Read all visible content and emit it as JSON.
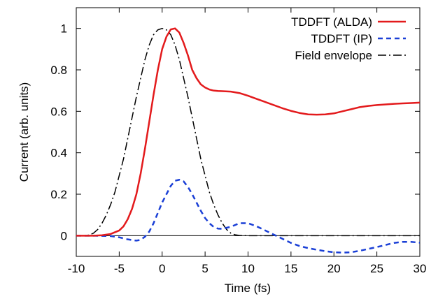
{
  "chart_data": {
    "type": "line",
    "xlabel": "Time (fs)",
    "ylabel": "Current (arb. units)",
    "xlim": [
      -10,
      30
    ],
    "ylim": [
      -0.1,
      1.1
    ],
    "x_ticks": [
      -10,
      -5,
      0,
      5,
      10,
      15,
      20,
      25,
      30
    ],
    "y_ticks": [
      0,
      0.2,
      0.4,
      0.6,
      0.8,
      1
    ],
    "x_tick_labels": [
      "-10",
      "-5",
      "0",
      "5",
      "10",
      "15",
      "20",
      "25",
      "30"
    ],
    "y_tick_labels": [
      "0",
      "0.2",
      "0.4",
      "0.6",
      "0.8",
      "1"
    ],
    "grid": false,
    "zero_line": true,
    "legend_position": "top-right",
    "series": [
      {
        "name": "TDDFT (ALDA)",
        "color": "#e31a1c",
        "dash": "solid",
        "x": [
          -10,
          -8,
          -7,
          -6,
          -5,
          -4.5,
          -4,
          -3.5,
          -3,
          -2.5,
          -2,
          -1.5,
          -1,
          -0.5,
          0,
          0.5,
          1,
          1.5,
          2,
          2.5,
          3,
          3.5,
          4,
          4.5,
          5,
          5.5,
          6,
          6.5,
          7,
          8,
          9,
          10,
          11,
          12,
          13,
          14,
          15,
          16,
          17,
          18,
          19,
          20,
          21,
          22,
          23,
          24,
          25,
          26,
          27,
          28,
          29,
          30
        ],
        "y": [
          0,
          0,
          0.002,
          0.008,
          0.025,
          0.045,
          0.08,
          0.13,
          0.2,
          0.3,
          0.42,
          0.55,
          0.68,
          0.8,
          0.9,
          0.96,
          0.995,
          1.0,
          0.98,
          0.93,
          0.87,
          0.8,
          0.76,
          0.73,
          0.715,
          0.705,
          0.7,
          0.698,
          0.697,
          0.695,
          0.688,
          0.675,
          0.66,
          0.645,
          0.63,
          0.615,
          0.602,
          0.592,
          0.585,
          0.584,
          0.585,
          0.59,
          0.6,
          0.61,
          0.62,
          0.626,
          0.63,
          0.633,
          0.636,
          0.638,
          0.64,
          0.642
        ]
      },
      {
        "name": "TDDFT (IP)",
        "color": "#1a3fd6",
        "dash": "dashed",
        "x": [
          -10,
          -8,
          -6,
          -5,
          -4,
          -3,
          -2.5,
          -2,
          -1.5,
          -1,
          -0.5,
          0,
          0.5,
          1,
          1.5,
          2,
          2.5,
          3,
          3.5,
          4,
          4.5,
          5,
          5.5,
          6,
          6.5,
          7,
          8,
          9,
          10,
          11,
          12,
          13,
          14,
          15,
          16,
          17,
          18,
          19,
          20,
          21,
          22,
          23,
          24,
          25,
          26,
          27,
          28,
          29,
          30
        ],
        "y": [
          0,
          0,
          -0.002,
          -0.008,
          -0.018,
          -0.024,
          -0.02,
          -0.005,
          0.02,
          0.06,
          0.11,
          0.16,
          0.2,
          0.24,
          0.265,
          0.27,
          0.262,
          0.235,
          0.2,
          0.16,
          0.12,
          0.085,
          0.06,
          0.042,
          0.034,
          0.033,
          0.043,
          0.06,
          0.06,
          0.045,
          0.025,
          0.005,
          -0.015,
          -0.035,
          -0.05,
          -0.06,
          -0.068,
          -0.075,
          -0.08,
          -0.082,
          -0.08,
          -0.073,
          -0.064,
          -0.055,
          -0.045,
          -0.035,
          -0.03,
          -0.03,
          -0.034
        ]
      },
      {
        "name": "Field envelope",
        "color": "#000000",
        "dash": "dashdot",
        "x": [
          -10,
          -9,
          -8.5,
          -8,
          -7.5,
          -7,
          -6.5,
          -6,
          -5.5,
          -5,
          -4.5,
          -4,
          -3.5,
          -3,
          -2.5,
          -2,
          -1.5,
          -1,
          -0.5,
          0,
          0.5,
          1,
          1.5,
          2,
          2.5,
          3,
          3.5,
          4,
          4.5,
          5,
          5.5,
          6,
          6.5,
          7,
          7.5,
          8,
          8.5,
          9,
          10,
          11,
          30
        ],
        "y": [
          0,
          0,
          0.003,
          0.012,
          0.03,
          0.06,
          0.1,
          0.15,
          0.21,
          0.29,
          0.37,
          0.47,
          0.57,
          0.67,
          0.76,
          0.85,
          0.92,
          0.97,
          0.993,
          1.0,
          0.993,
          0.97,
          0.92,
          0.85,
          0.76,
          0.67,
          0.57,
          0.47,
          0.37,
          0.29,
          0.21,
          0.15,
          0.1,
          0.06,
          0.03,
          0.012,
          0.004,
          0.001,
          0,
          0,
          0
        ]
      }
    ]
  }
}
